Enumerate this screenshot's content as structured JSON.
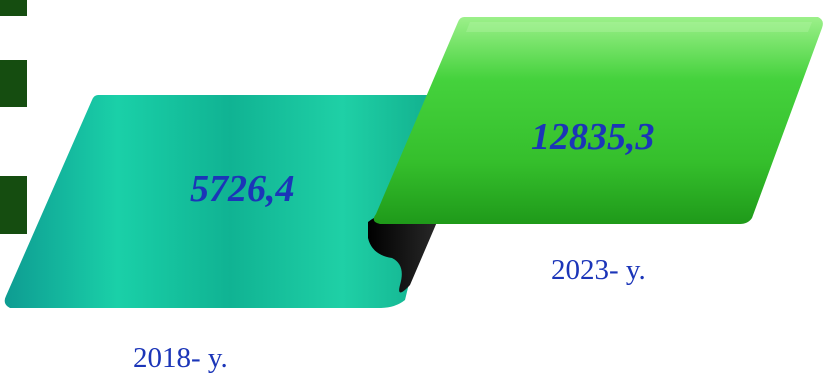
{
  "items": [
    {
      "year_label": "2018- y.",
      "value": "5726,4",
      "color": "#14b89a"
    },
    {
      "year_label": "2023- y.",
      "value": "12835,3",
      "color": "#3cc93a"
    }
  ],
  "colors": {
    "text": "#1b35b8",
    "sidebar": "#154d10",
    "fold": "#111111"
  }
}
